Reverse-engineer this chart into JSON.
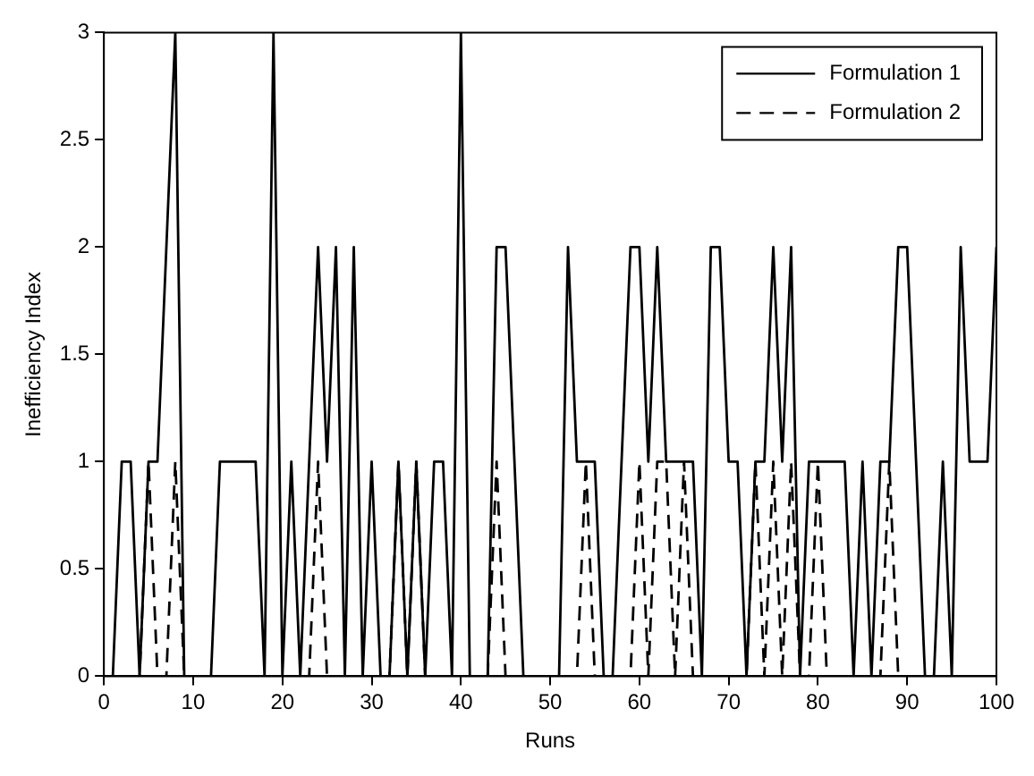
{
  "chart_data": {
    "type": "line",
    "xlabel": "Runs",
    "ylabel": "Inefficiency Index",
    "x": [
      0,
      1,
      2,
      3,
      4,
      5,
      6,
      7,
      8,
      9,
      10,
      11,
      12,
      13,
      14,
      15,
      16,
      17,
      18,
      19,
      20,
      21,
      22,
      23,
      24,
      25,
      26,
      27,
      28,
      29,
      30,
      31,
      32,
      33,
      34,
      35,
      36,
      37,
      38,
      39,
      40,
      41,
      42,
      43,
      44,
      45,
      46,
      47,
      48,
      49,
      50,
      51,
      52,
      53,
      54,
      55,
      56,
      57,
      58,
      59,
      60,
      61,
      62,
      63,
      64,
      65,
      66,
      67,
      68,
      69,
      70,
      71,
      72,
      73,
      74,
      75,
      76,
      77,
      78,
      79,
      80,
      81,
      82,
      83,
      84,
      85,
      86,
      87,
      88,
      89,
      90,
      91,
      92,
      93,
      94,
      95,
      96,
      97,
      98,
      99,
      100
    ],
    "series": [
      {
        "name": "Formulation 1",
        "color": "#000000",
        "line_style": "solid",
        "values": [
          0,
          0,
          1,
          1,
          0,
          1,
          1,
          2,
          3,
          0,
          0,
          0,
          0,
          1,
          1,
          1,
          1,
          1,
          0,
          3,
          0,
          1,
          0,
          1,
          2,
          1,
          2,
          0,
          2,
          0,
          1,
          0,
          0,
          1,
          0,
          1,
          0,
          1,
          1,
          0,
          3,
          0,
          0,
          0,
          2,
          2,
          1,
          0,
          0,
          0,
          0,
          0,
          2,
          1,
          1,
          1,
          0,
          0,
          1,
          2,
          2,
          1,
          2,
          1,
          1,
          1,
          1,
          0,
          2,
          2,
          1,
          1,
          0,
          1,
          1,
          2,
          1,
          2,
          0,
          1,
          1,
          1,
          1,
          1,
          0,
          1,
          0,
          1,
          1,
          2,
          2,
          1,
          0,
          0,
          1,
          0,
          2,
          1,
          1,
          1,
          2
        ]
      },
      {
        "name": "Formulation 2",
        "color": "#000000",
        "line_style": "dashed",
        "values": [
          0,
          0,
          0,
          0,
          0,
          1,
          0,
          0,
          1,
          0,
          0,
          0,
          0,
          0,
          0,
          0,
          0,
          0,
          0,
          0,
          0,
          0,
          0,
          0,
          1,
          0,
          0,
          0,
          0,
          0,
          0,
          0,
          0,
          1,
          0,
          1,
          0,
          0,
          0,
          0,
          0,
          0,
          0,
          0,
          1,
          0,
          0,
          0,
          0,
          0,
          0,
          0,
          0,
          0,
          1,
          0,
          0,
          0,
          0,
          0,
          1,
          0,
          1,
          1,
          0,
          1,
          0,
          0,
          0,
          0,
          0,
          0,
          0,
          1,
          0,
          1,
          0,
          1,
          0,
          0,
          1,
          0,
          0,
          0,
          0,
          0,
          0,
          0,
          1,
          0,
          0,
          0,
          0,
          0,
          0,
          0,
          0,
          0,
          0,
          0,
          0
        ]
      }
    ],
    "xlim": [
      0,
      100
    ],
    "xticks": [
      0,
      10,
      20,
      30,
      40,
      50,
      60,
      70,
      80,
      90,
      100
    ],
    "ylim": [
      0,
      3
    ],
    "yticks": [
      0,
      0.5,
      1,
      1.5,
      2,
      2.5,
      3
    ],
    "grid": false,
    "legend": "top right",
    "marker": "none"
  }
}
